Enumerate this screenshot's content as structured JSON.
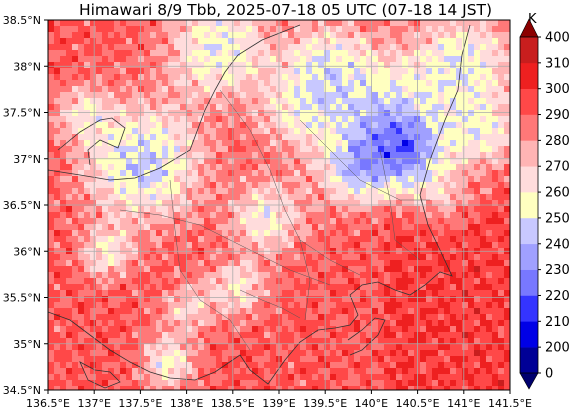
{
  "title": "Himawari 8/9 Tbb, 2025-07-18 05 UTC (07-18 14 JST)",
  "map": {
    "lon_range": [
      136.5,
      141.5
    ],
    "lat_range": [
      34.5,
      38.5
    ],
    "lon_ticks": [
      {
        "value": 136.5,
        "label": "136.5°E"
      },
      {
        "value": 137.0,
        "label": "137°E"
      },
      {
        "value": 137.5,
        "label": "137.5°E"
      },
      {
        "value": 138.0,
        "label": "138°E"
      },
      {
        "value": 138.5,
        "label": "138.5°E"
      },
      {
        "value": 139.0,
        "label": "139°E"
      },
      {
        "value": 139.5,
        "label": "139.5°E"
      },
      {
        "value": 140.0,
        "label": "140°E"
      },
      {
        "value": 140.5,
        "label": "140.5°E"
      },
      {
        "value": 141.0,
        "label": "141°E"
      },
      {
        "value": 141.5,
        "label": "141.5°E"
      }
    ],
    "lat_ticks": [
      {
        "value": 34.5,
        "label": "34.5°N"
      },
      {
        "value": 35.0,
        "label": "35°N"
      },
      {
        "value": 35.5,
        "label": "35.5°N"
      },
      {
        "value": 36.0,
        "label": "36°N"
      },
      {
        "value": 36.5,
        "label": "36.5°N"
      },
      {
        "value": 37.0,
        "label": "37°N"
      },
      {
        "value": 37.5,
        "label": "37.5°N"
      },
      {
        "value": 38.0,
        "label": "38°N"
      },
      {
        "value": 38.5,
        "label": "38.5°N"
      }
    ],
    "grid": true,
    "field": "brightness temperature"
  },
  "colorbar": {
    "unit": "K",
    "levels": [
      0,
      200,
      210,
      220,
      230,
      240,
      250,
      260,
      270,
      280,
      290,
      300,
      310,
      400
    ],
    "labels": [
      "0",
      "200",
      "210",
      "220",
      "230",
      "240",
      "250",
      "260",
      "270",
      "280",
      "290",
      "300",
      "310",
      "400"
    ],
    "colors": [
      "#000096",
      "#0000e6",
      "#3434ff",
      "#7878ff",
      "#a0a0ff",
      "#c8c8ff",
      "#ffffc0",
      "#ffdcdc",
      "#ffb4b4",
      "#ff7878",
      "#ff4848",
      "#ee2020",
      "#c81e1e"
    ],
    "under_color": "#00006e",
    "over_color": "#8b0000",
    "extend": "both"
  }
}
